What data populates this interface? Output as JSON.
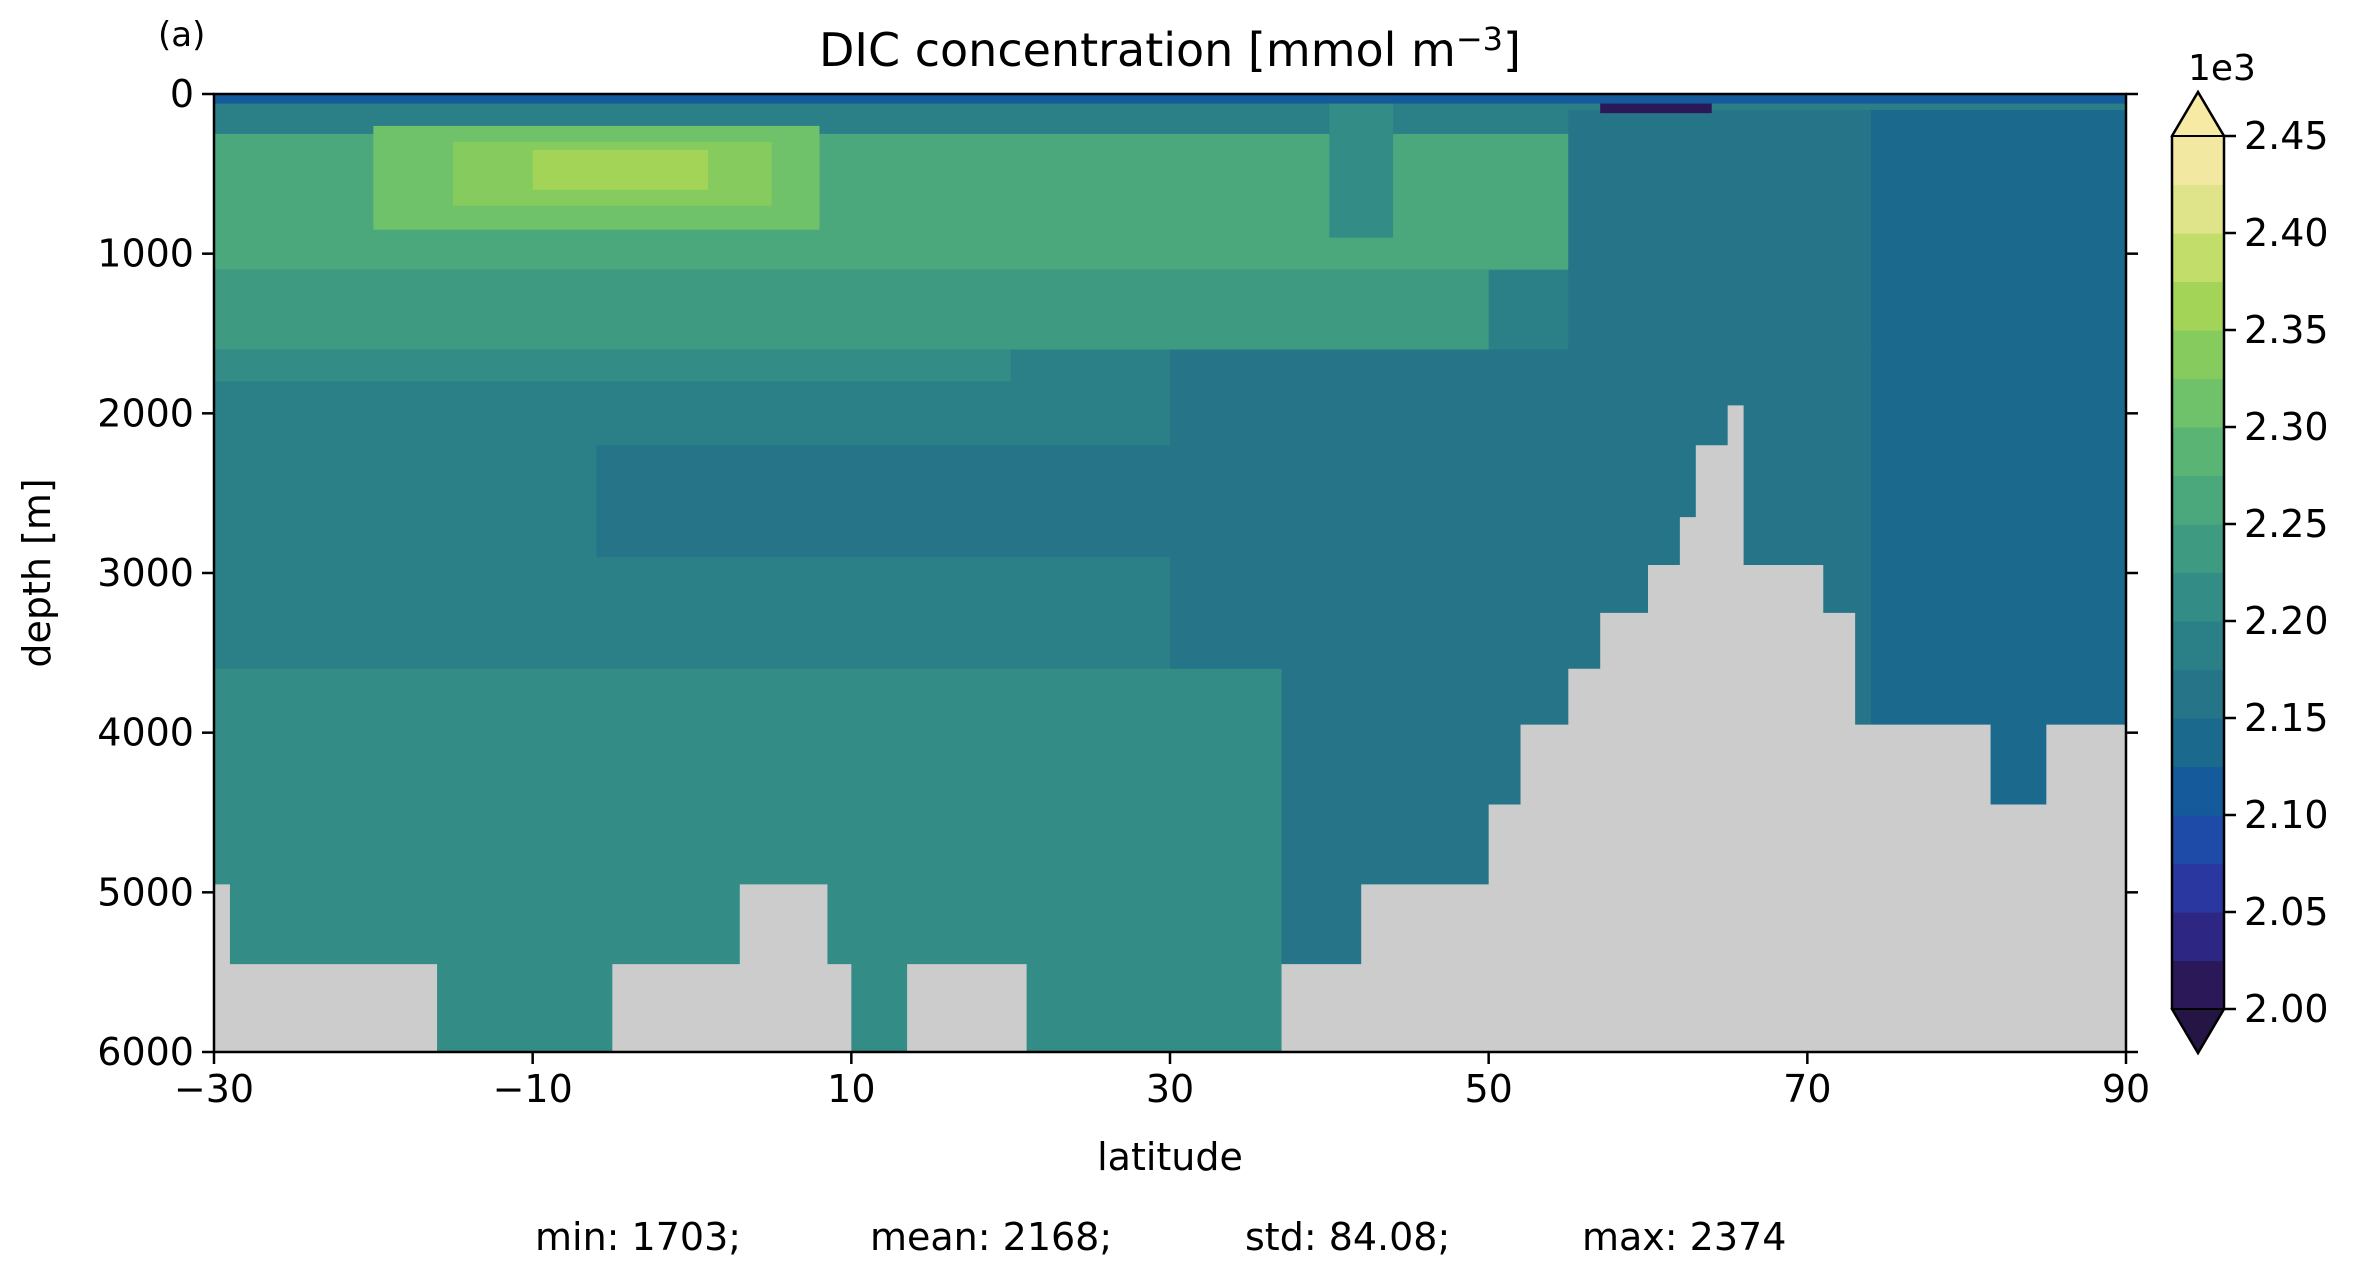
{
  "panel_label": "(a)",
  "chart_data": {
    "type": "heatmap",
    "title": "DIC concentration [mmol m",
    "title_sup": "−3",
    "title_end": "]",
    "xlabel": "latitude",
    "ylabel": "depth [m]",
    "xlim": [
      -30,
      90
    ],
    "ylim": [
      6000,
      0
    ],
    "xticks": [
      -30,
      -10,
      10,
      30,
      50,
      70,
      90
    ],
    "xtick_labels": [
      "−30",
      "−10",
      "10",
      "30",
      "50",
      "70",
      "90"
    ],
    "yticks": [
      0,
      1000,
      2000,
      3000,
      4000,
      5000,
      6000
    ],
    "ytick_labels": [
      "0",
      "1000",
      "2000",
      "3000",
      "4000",
      "5000",
      "6000"
    ],
    "y_inverted": true,
    "colorbar": {
      "multiplier": "1e3",
      "vmin": 2.0,
      "vmax": 2.45,
      "step": 0.025,
      "extend": "both",
      "ticks": [
        2.0,
        2.05,
        2.1,
        2.15,
        2.2,
        2.25,
        2.3,
        2.35,
        2.4,
        2.45
      ],
      "tick_labels": [
        "2.00",
        "2.05",
        "2.10",
        "2.15",
        "2.20",
        "2.25",
        "2.30",
        "2.35",
        "2.40",
        "2.45"
      ],
      "colors": [
        "#2a1858",
        "#2d2783",
        "#2a37a0",
        "#1e4aa8",
        "#155b9b",
        "#1b6a8e",
        "#257488",
        "#2b8088",
        "#338d86",
        "#3e9b82",
        "#4aa87c",
        "#5ab574",
        "#6fc16a",
        "#86cb5e",
        "#a3d458",
        "#c2dd6a",
        "#dfe48a",
        "#f3e8a2"
      ],
      "under_color": "#241545",
      "over_color": "#f6eaa5"
    },
    "land_color": "#cccccc",
    "bathymetry_m": [
      [
        -30,
        4950
      ],
      [
        -29,
        5450
      ],
      [
        -16,
        6000
      ],
      [
        -5,
        5450
      ],
      [
        3,
        4950
      ],
      [
        8.5,
        5450
      ],
      [
        10,
        6000
      ],
      [
        13.5,
        5450
      ],
      [
        21,
        6000
      ],
      [
        37,
        5450
      ],
      [
        42,
        4950
      ],
      [
        50,
        4450
      ],
      [
        52,
        3950
      ],
      [
        55,
        3600
      ],
      [
        57,
        3250
      ],
      [
        60,
        2950
      ],
      [
        62,
        2650
      ],
      [
        63,
        2200
      ],
      [
        65,
        1950
      ],
      [
        66,
        2950
      ],
      [
        71,
        3250
      ],
      [
        73,
        3950
      ],
      [
        81.5,
        4450
      ],
      [
        85,
        3950
      ],
      [
        90,
        3950
      ]
    ],
    "field_regions": [
      {
        "lat": [
          -30,
          90
        ],
        "depth": [
          0,
          6000
        ],
        "value": 2.18
      },
      {
        "lat": [
          -30,
          55
        ],
        "depth": [
          250,
          1100
        ],
        "value": 2.25
      },
      {
        "lat": [
          -30,
          50
        ],
        "depth": [
          1100,
          1600
        ],
        "value": 2.225
      },
      {
        "lat": [
          -30,
          20
        ],
        "depth": [
          1600,
          1800
        ],
        "value": 2.22
      },
      {
        "lat": [
          -20,
          8
        ],
        "depth": [
          200,
          850
        ],
        "value": 2.3
      },
      {
        "lat": [
          -15,
          5
        ],
        "depth": [
          300,
          700
        ],
        "value": 2.33
      },
      {
        "lat": [
          -10,
          1
        ],
        "depth": [
          350,
          600
        ],
        "value": 2.355
      },
      {
        "lat": [
          -6,
          38
        ],
        "depth": [
          2200,
          2900
        ],
        "value": 2.16
      },
      {
        "lat": [
          30,
          90
        ],
        "depth": [
          1600,
          6000
        ],
        "value": 2.15
      },
      {
        "lat": [
          55,
          90
        ],
        "depth": [
          100,
          1600
        ],
        "value": 2.15
      },
      {
        "lat": [
          74,
          90
        ],
        "depth": [
          100,
          6000
        ],
        "value": 2.125
      },
      {
        "lat": [
          -30,
          37
        ],
        "depth": [
          3600,
          6000
        ],
        "value": 2.21
      },
      {
        "lat": [
          -10,
          12
        ],
        "depth": [
          3900,
          6000
        ],
        "value": 2.2
      },
      {
        "lat": [
          40,
          44
        ],
        "depth": [
          0,
          900
        ],
        "value": 2.22
      },
      {
        "lat": [
          57,
          64
        ],
        "depth": [
          0,
          120
        ],
        "value": 2.0
      },
      {
        "lat": [
          -30,
          90
        ],
        "depth": [
          0,
          60
        ],
        "value": 2.1
      }
    ],
    "stats": {
      "min": "min: 1703;",
      "mean": "mean: 2168;",
      "std": "std: 84.08;",
      "max": "max: 2374"
    }
  }
}
